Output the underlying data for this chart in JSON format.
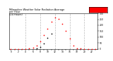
{
  "title": "Milwaukee Weather Solar Radiation Average",
  "title2": "per Hour",
  "title3": "(24 Hours)",
  "hours": [
    0,
    1,
    2,
    3,
    4,
    5,
    6,
    7,
    8,
    9,
    10,
    11,
    12,
    13,
    14,
    15,
    16,
    17,
    18,
    19,
    20,
    21,
    22,
    23
  ],
  "solar_avg": [
    0,
    0,
    0,
    0,
    0,
    2,
    8,
    28,
    65,
    115,
    170,
    230,
    265,
    255,
    210,
    155,
    85,
    30,
    6,
    1,
    0,
    0,
    0,
    0
  ],
  "current_x": [
    7,
    8,
    9,
    10,
    11
  ],
  "current_y": [
    5,
    18,
    45,
    90,
    130
  ],
  "dot_color_avg": "#ff0000",
  "dot_color_current": "#000000",
  "grid_color": "#bbbbbb",
  "bg_color": "#ffffff",
  "legend_box_color": "#ff0000",
  "ylim": [
    0,
    300
  ],
  "yticks": [
    0,
    50,
    100,
    150,
    200,
    250,
    300
  ],
  "ytick_labels": [
    "0",
    "50",
    "100",
    "150",
    "200",
    "250",
    "300"
  ],
  "xtick_step": 2,
  "grid_hours": [
    4,
    8,
    12,
    16,
    20
  ]
}
